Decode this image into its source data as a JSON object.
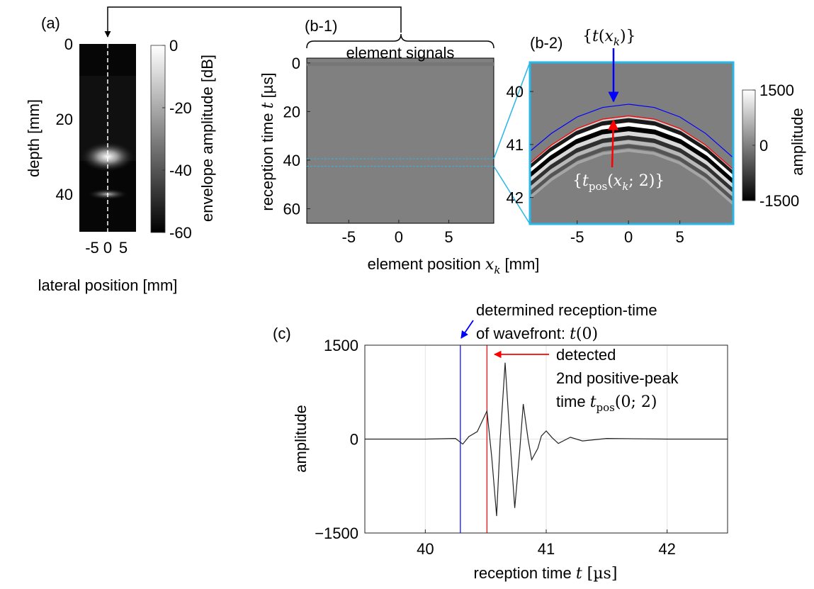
{
  "chart_data": [
    {
      "type": "image",
      "panel_label": "(a)",
      "ylabel": [
        {
          "text": "depth [mm]"
        }
      ],
      "xlabel": [
        {
          "text": "lateral position [mm]"
        }
      ],
      "xlim": [
        -9.1,
        9.1
      ],
      "xticks": [
        -5,
        0,
        5
      ],
      "ylim": [
        0,
        50
      ],
      "yticks": [
        0,
        20,
        40
      ],
      "colorbar": {
        "label": [
          {
            "text": "envelope amplitude [dB]"
          }
        ],
        "clim": [
          -60,
          0
        ],
        "ticks": [
          0,
          -20,
          -40,
          -60
        ],
        "colors": [
          "#000000",
          "#ffffff"
        ]
      }
    },
    {
      "type": "image",
      "panel_label": "(b-1)",
      "title": "element signals",
      "ylabel": [
        {
          "text": "reception time "
        },
        {
          "text": "t",
          "style": "math"
        },
        {
          "text": " [µs]"
        }
      ],
      "xlabel": [
        {
          "text": "element position "
        },
        {
          "text": "x",
          "style": "math"
        },
        {
          "text": "k",
          "style": "sub"
        },
        {
          "text": " [mm]"
        }
      ],
      "xlim": [
        -9.2,
        9.5
      ],
      "xticks": [
        -5,
        0,
        5
      ],
      "ylim": [
        -2,
        66
      ],
      "yticks": [
        0,
        20,
        40,
        60
      ]
    },
    {
      "type": "image",
      "panel_label": "(b-2)",
      "xlim": [
        -9.6,
        10.2
      ],
      "xticks": [
        -5,
        0,
        5
      ],
      "ylim": [
        39.45,
        42.5
      ],
      "yticks": [
        40,
        41,
        42
      ],
      "series": [
        {
          "color": "#0000ff",
          "x": [
            -9.6,
            -7.5,
            -5,
            -2.5,
            0,
            2.5,
            5,
            7.5,
            10.2
          ],
          "values": [
            41.13,
            40.79,
            40.48,
            40.3,
            40.24,
            40.3,
            40.48,
            40.79,
            41.25
          ]
        },
        {
          "color": "#ff0000",
          "x": [
            -9.6,
            -7.5,
            -5,
            -2.5,
            0,
            2.5,
            5,
            7.5,
            10.2
          ],
          "values": [
            41.35,
            41.01,
            40.7,
            40.52,
            40.46,
            40.52,
            40.7,
            41.01,
            41.47
          ]
        }
      ],
      "annotations": [
        {
          "color": "#0000ff",
          "text": [
            {
              "text": "{",
              "style": "mathr"
            },
            {
              "text": "t",
              "style": "math"
            },
            {
              "text": "(",
              "style": "mathr"
            },
            {
              "text": "x",
              "style": "math"
            },
            {
              "text": "k",
              "style": "sub"
            },
            {
              "text": ")}",
              "style": "mathr"
            }
          ]
        },
        {
          "color": "#ff0000",
          "text": [
            {
              "text": "{",
              "style": "mathr"
            },
            {
              "text": "t",
              "style": "math"
            },
            {
              "text": "pos",
              "style": "subr"
            },
            {
              "text": "(",
              "style": "mathr"
            },
            {
              "text": "x",
              "style": "math"
            },
            {
              "text": "k",
              "style": "sub"
            },
            {
              "text": "; 2)}",
              "style": "mathr"
            }
          ]
        }
      ],
      "colorbar": {
        "label": [
          {
            "text": "amplitude"
          }
        ],
        "clim": [
          -1500,
          1500
        ],
        "ticks": [
          1500,
          0,
          -1500
        ],
        "colors": [
          "#000000",
          "#ffffff"
        ]
      }
    },
    {
      "type": "line",
      "panel_label": "(c)",
      "grid": true,
      "ylabel": [
        {
          "text": "amplitude"
        }
      ],
      "xlabel": [
        {
          "text": "reception time "
        },
        {
          "text": "t",
          "style": "math"
        },
        {
          "text": " [µs]",
          "style": "mathr"
        }
      ],
      "xlim": [
        39.5,
        42.5
      ],
      "xticks": [
        40,
        41,
        42
      ],
      "ylim": [
        -1500,
        1500
      ],
      "yticks": [
        {
          "value": -1500,
          "label": "−1500"
        },
        0,
        1500
      ],
      "series": [
        {
          "color": "#222222",
          "x": [
            39.5,
            40.0,
            40.25,
            40.31,
            40.36,
            40.43,
            40.51,
            40.55,
            40.59,
            40.62,
            40.66,
            40.7,
            40.74,
            40.78,
            40.81,
            40.85,
            40.88,
            40.93,
            40.96,
            41.0,
            41.05,
            41.1,
            41.2,
            41.3,
            41.5,
            42.0,
            42.5
          ],
          "values": [
            0,
            0,
            10,
            -80,
            40,
            120,
            450,
            -300,
            -1230,
            0,
            1220,
            0,
            -1100,
            -200,
            560,
            0,
            -330,
            -150,
            50,
            130,
            20,
            -70,
            30,
            -30,
            10,
            0,
            0
          ]
        }
      ],
      "vlines": [
        {
          "x": 40.29,
          "color": "#0000ff"
        },
        {
          "x": 40.51,
          "color": "#ff0000"
        }
      ],
      "annotations": [
        {
          "color": "#0000ff",
          "lines": [
            [
              {
                "text": "determined reception-time"
              }
            ],
            [
              {
                "text": "of wavefront: "
              },
              {
                "text": "t",
                "style": "math"
              },
              {
                "text": "(0)",
                "style": "mathr"
              }
            ]
          ]
        },
        {
          "color": "#ff0000",
          "lines": [
            [
              {
                "text": "detected"
              }
            ],
            [
              {
                "text": "2nd positive-peak"
              }
            ],
            [
              {
                "text": "time "
              },
              {
                "text": "t",
                "style": "math"
              },
              {
                "text": "pos",
                "style": "subr"
              },
              {
                "text": "(0; 2)",
                "style": "mathr"
              }
            ]
          ]
        }
      ]
    }
  ]
}
